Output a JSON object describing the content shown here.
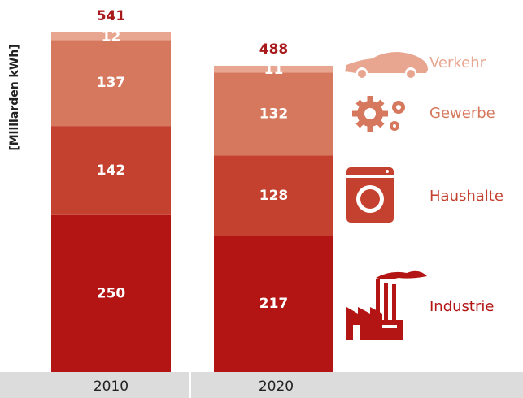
{
  "chart_data": {
    "type": "stacked_bar",
    "y_label": "[Milliarden kWh]",
    "categories": [
      "2010",
      "2020"
    ],
    "series": [
      {
        "name": "Industrie",
        "color": "#b31515",
        "values": [
          250,
          217
        ]
      },
      {
        "name": "Haushalte",
        "color": "#c5412f",
        "values": [
          142,
          128
        ]
      },
      {
        "name": "Gewerbe",
        "color": "#d6785e",
        "values": [
          137,
          132
        ]
      },
      {
        "name": "Verkehr",
        "color": "#e8a690",
        "values": [
          12,
          11
        ]
      }
    ],
    "totals": [
      541,
      488
    ]
  }
}
